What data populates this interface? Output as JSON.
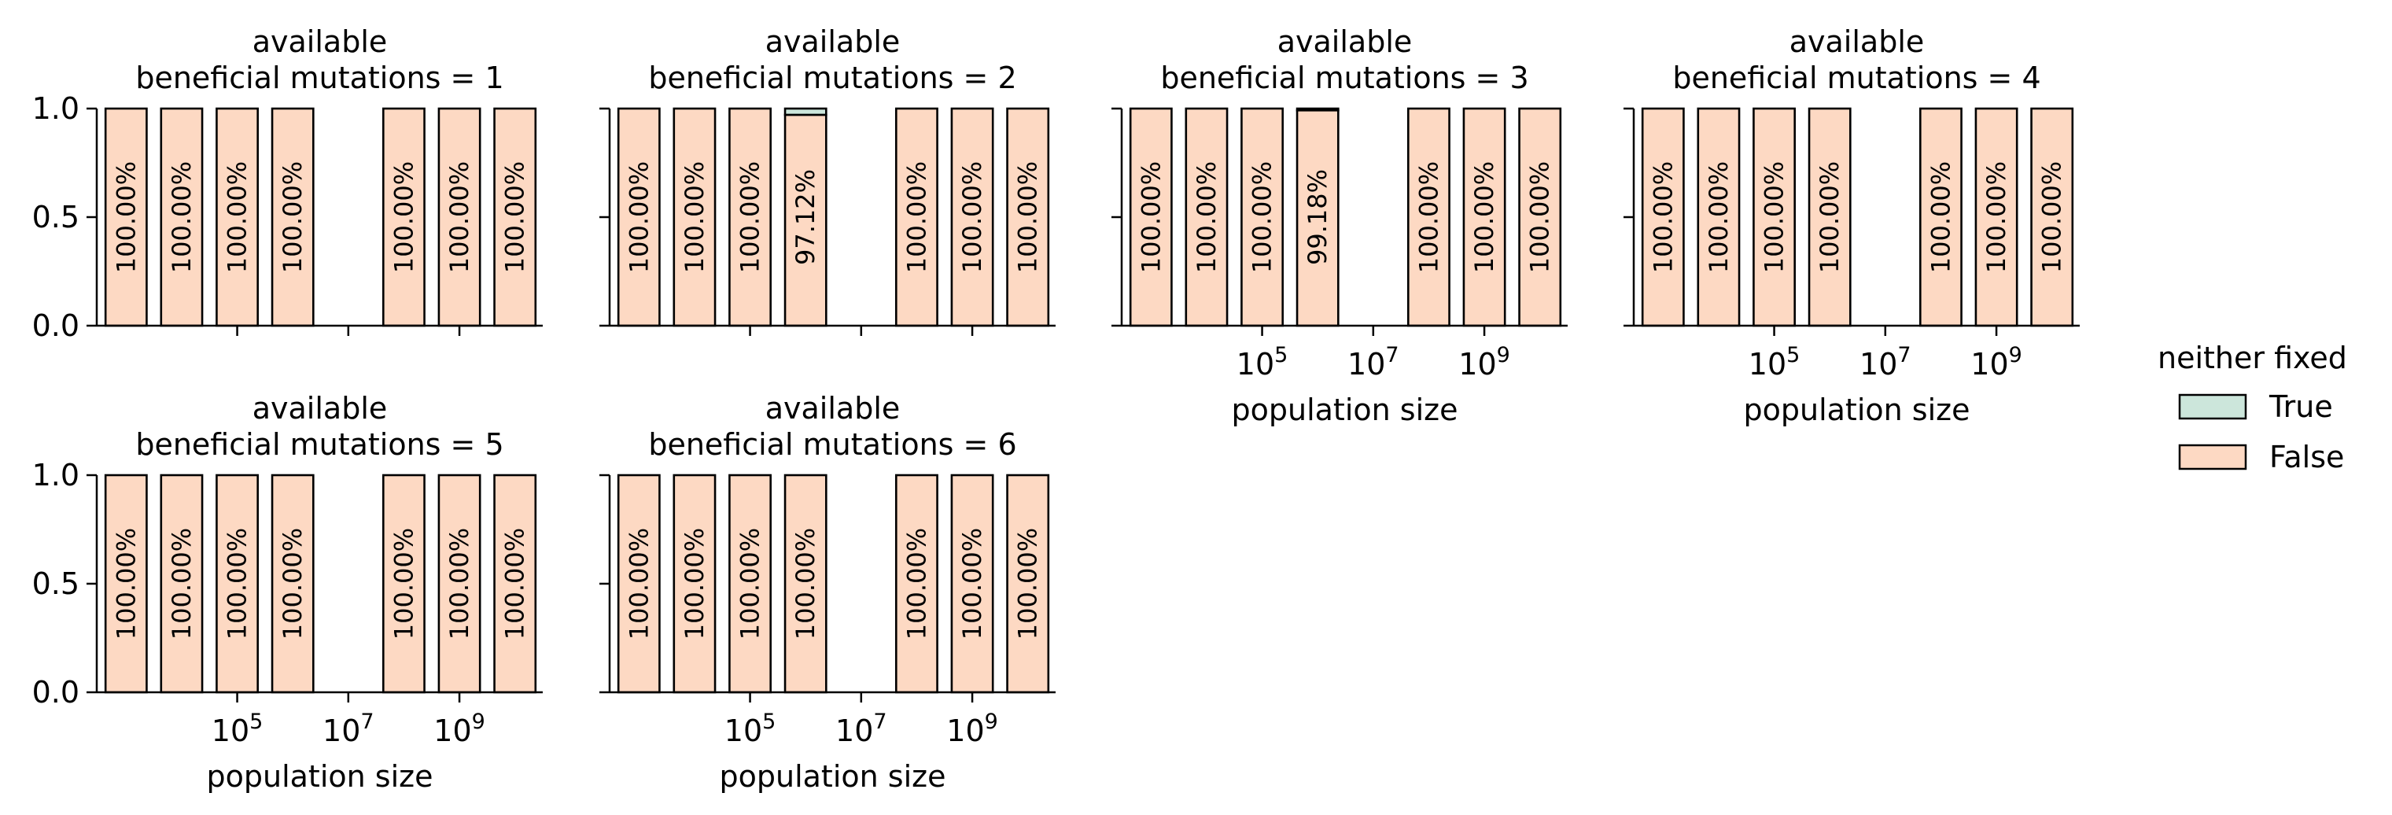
{
  "chart_data": {
    "type": "bar",
    "layout": "faceted stacked bar chart, 2 rows x 4 columns of panels",
    "xlabel": "population size",
    "ylabel": "",
    "xscale": "log",
    "x_tick_values": [
      100000,
      10000000,
      1000000000
    ],
    "x_tick_labels": [
      {
        "base": "10",
        "exp": "5"
      },
      {
        "base": "10",
        "exp": "7"
      },
      {
        "base": "10",
        "exp": "9"
      }
    ],
    "y_tick_labels": [
      "0.0",
      "0.5",
      "1.0"
    ],
    "ylim": [
      0,
      1
    ],
    "grid": false,
    "legend": {
      "title": "neither fixed",
      "placement": "right",
      "entries": [
        {
          "label": "True",
          "color": "#cce6db"
        },
        {
          "label": "False",
          "color": "#fdd9c3"
        }
      ]
    },
    "colors": {
      "true": "#cce6db",
      "false": "#fdd9c3",
      "edge": "#000000"
    },
    "population_sizes": [
      1000,
      10000,
      100000,
      1000000,
      10000000,
      100000000,
      1000000000,
      10000000000
    ],
    "panels": [
      {
        "title_line1": "available",
        "title_line2": "beneficial mutations = 1",
        "false_values": [
          1,
          1,
          1,
          1,
          null,
          1,
          1,
          1
        ],
        "labels": [
          "100.00%",
          "100.00%",
          "100.00%",
          "100.00%",
          "",
          "100.00%",
          "100.00%",
          "100.00%"
        ]
      },
      {
        "title_line1": "available",
        "title_line2": "beneficial mutations = 2",
        "false_values": [
          1,
          1,
          1,
          0.9712,
          null,
          1,
          1,
          1
        ],
        "labels": [
          "100.00%",
          "100.00%",
          "100.00%",
          "97.12%",
          "",
          "100.00%",
          "100.00%",
          "100.00%"
        ]
      },
      {
        "title_line1": "available",
        "title_line2": "beneficial mutations = 3",
        "false_values": [
          1,
          1,
          1,
          0.9918,
          null,
          1,
          1,
          1
        ],
        "labels": [
          "100.00%",
          "100.00%",
          "100.00%",
          "99.18%",
          "",
          "100.00%",
          "100.00%",
          "100.00%"
        ]
      },
      {
        "title_line1": "available",
        "title_line2": "beneficial mutations = 4",
        "false_values": [
          1,
          1,
          1,
          1,
          null,
          1,
          1,
          1
        ],
        "labels": [
          "100.00%",
          "100.00%",
          "100.00%",
          "100.00%",
          "",
          "100.00%",
          "100.00%",
          "100.00%"
        ]
      },
      {
        "title_line1": "available",
        "title_line2": "beneficial mutations = 5",
        "false_values": [
          1,
          1,
          1,
          1,
          null,
          1,
          1,
          1
        ],
        "labels": [
          "100.00%",
          "100.00%",
          "100.00%",
          "100.00%",
          "",
          "100.00%",
          "100.00%",
          "100.00%"
        ]
      },
      {
        "title_line1": "available",
        "title_line2": "beneficial mutations = 6",
        "false_values": [
          1,
          1,
          1,
          1,
          null,
          1,
          1,
          1
        ],
        "labels": [
          "100.00%",
          "100.00%",
          "100.00%",
          "100.00%",
          "",
          "100.00%",
          "100.00%",
          "100.00%"
        ]
      }
    ]
  }
}
